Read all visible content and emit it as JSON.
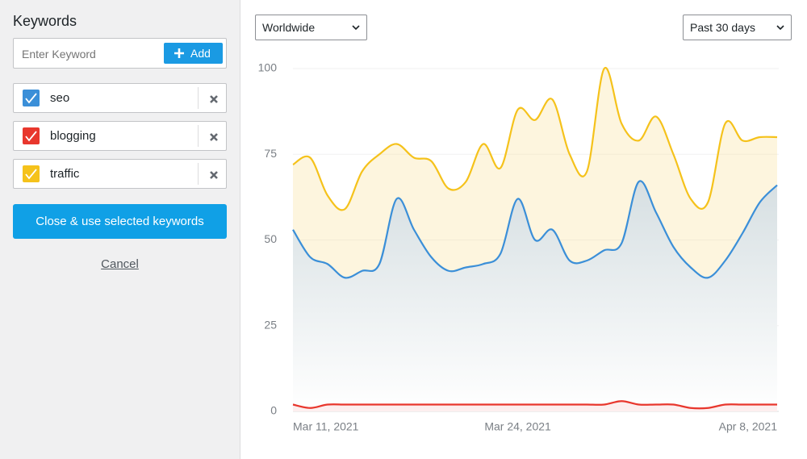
{
  "sidebar": {
    "title": "Keywords",
    "input_placeholder": "Enter Keyword",
    "add_button": "Add",
    "primary_button": "Close & use selected keywords",
    "cancel": "Cancel"
  },
  "filters": {
    "region": "Worldwide",
    "period": "Past 30 days"
  },
  "chart_data": {
    "type": "area",
    "x": [
      "2021-03-11",
      "2021-03-12",
      "2021-03-13",
      "2021-03-14",
      "2021-03-15",
      "2021-03-16",
      "2021-03-17",
      "2021-03-18",
      "2021-03-19",
      "2021-03-20",
      "2021-03-21",
      "2021-03-22",
      "2021-03-23",
      "2021-03-24",
      "2021-03-25",
      "2021-03-26",
      "2021-03-27",
      "2021-03-28",
      "2021-03-29",
      "2021-03-30",
      "2021-03-31",
      "2021-04-01",
      "2021-04-02",
      "2021-04-03",
      "2021-04-04",
      "2021-04-05",
      "2021-04-06",
      "2021-04-07",
      "2021-04-08"
    ],
    "xticks": [
      {
        "value": "2021-03-11",
        "label": "Mar 11, 2021"
      },
      {
        "value": "2021-03-24",
        "label": "Mar 24, 2021"
      },
      {
        "value": "2021-04-08",
        "label": "Apr 8, 2021"
      }
    ],
    "ylim": [
      0,
      100
    ],
    "yticks": [
      0,
      25,
      50,
      75,
      100
    ],
    "grid": true,
    "series": [
      {
        "name": "seo",
        "color": "#3b8fd8",
        "values": [
          53,
          45,
          43,
          39,
          41,
          43,
          62,
          53,
          45,
          41,
          42,
          43,
          46,
          62,
          50,
          53,
          44,
          44,
          47,
          49,
          67,
          58,
          48,
          42,
          39,
          44,
          52,
          61,
          66
        ]
      },
      {
        "name": "blogging",
        "color": "#e8372d",
        "values": [
          2,
          1,
          2,
          2,
          2,
          2,
          2,
          2,
          2,
          2,
          2,
          2,
          2,
          2,
          2,
          2,
          2,
          2,
          2,
          3,
          2,
          2,
          2,
          1,
          1,
          2,
          2,
          2,
          2
        ]
      },
      {
        "name": "traffic",
        "color": "#f5c21b",
        "values": [
          72,
          74,
          63,
          59,
          70,
          75,
          78,
          74,
          73,
          65,
          67,
          78,
          71,
          88,
          85,
          91,
          75,
          70,
          100,
          84,
          79,
          86,
          75,
          62,
          61,
          84,
          79,
          80,
          80
        ]
      }
    ]
  }
}
